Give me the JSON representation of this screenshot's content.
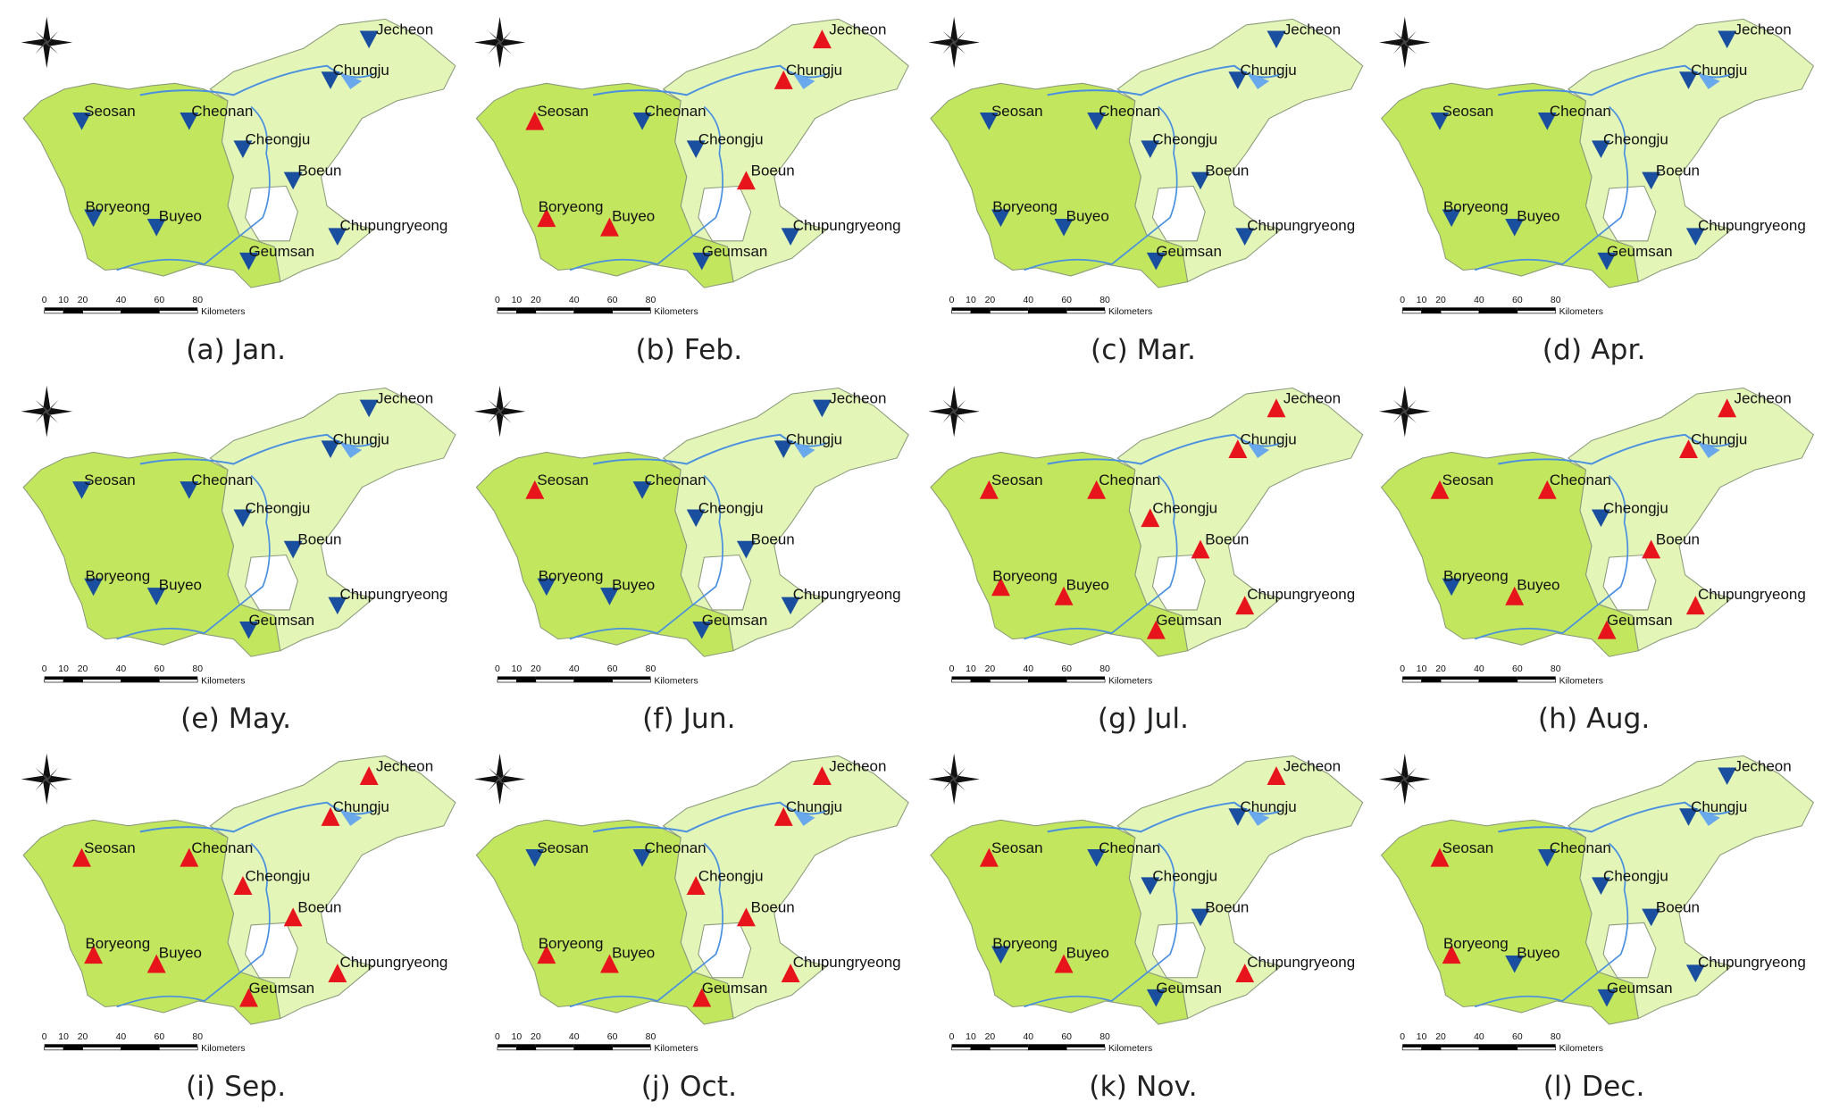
{
  "stations": [
    "Jecheon",
    "Chungju",
    "Seosan",
    "Cheonan",
    "Cheongju",
    "Boeun",
    "Boryeong",
    "Buyeo",
    "Chupungryeong",
    "Geumsan"
  ],
  "scale_bar": {
    "ticks": [
      0,
      10,
      20,
      40,
      60,
      80
    ],
    "unit": "Kilometers"
  },
  "panels": [
    {
      "caption": "(a) Jan.",
      "trends": [
        "down",
        "down",
        "down",
        "down",
        "down",
        "down",
        "down",
        "down",
        "down",
        "down"
      ]
    },
    {
      "caption": "(b) Feb.",
      "trends": [
        "up",
        "up",
        "up",
        "down",
        "down",
        "up",
        "up",
        "up",
        "down",
        "down"
      ]
    },
    {
      "caption": "(c) Mar.",
      "trends": [
        "down",
        "down",
        "down",
        "down",
        "down",
        "down",
        "down",
        "down",
        "down",
        "down"
      ]
    },
    {
      "caption": "(d) Apr.",
      "trends": [
        "down",
        "down",
        "down",
        "down",
        "down",
        "down",
        "down",
        "down",
        "down",
        "down"
      ]
    },
    {
      "caption": "(e) May.",
      "trends": [
        "down",
        "down",
        "down",
        "down",
        "down",
        "down",
        "down",
        "down",
        "down",
        "down"
      ]
    },
    {
      "caption": "(f) Jun.",
      "trends": [
        "down",
        "down",
        "up",
        "down",
        "down",
        "down",
        "down",
        "down",
        "down",
        "down"
      ]
    },
    {
      "caption": "(g) Jul.",
      "trends": [
        "up",
        "up",
        "up",
        "up",
        "up",
        "up",
        "up",
        "up",
        "up",
        "up"
      ]
    },
    {
      "caption": "(h) Aug.",
      "trends": [
        "up",
        "up",
        "up",
        "up",
        "down",
        "up",
        "down",
        "up",
        "up",
        "up"
      ]
    },
    {
      "caption": "(i) Sep.",
      "trends": [
        "up",
        "up",
        "up",
        "up",
        "up",
        "up",
        "up",
        "up",
        "up",
        "up"
      ]
    },
    {
      "caption": "(j) Oct.",
      "trends": [
        "up",
        "up",
        "down",
        "down",
        "up",
        "up",
        "up",
        "up",
        "up",
        "up"
      ]
    },
    {
      "caption": "(k) Nov.",
      "trends": [
        "up",
        "down",
        "up",
        "down",
        "down",
        "down",
        "down",
        "up",
        "up",
        "down"
      ]
    },
    {
      "caption": "(l) Dec.",
      "trends": [
        "down",
        "down",
        "up",
        "down",
        "down",
        "down",
        "up",
        "down",
        "down",
        "down"
      ]
    }
  ]
}
